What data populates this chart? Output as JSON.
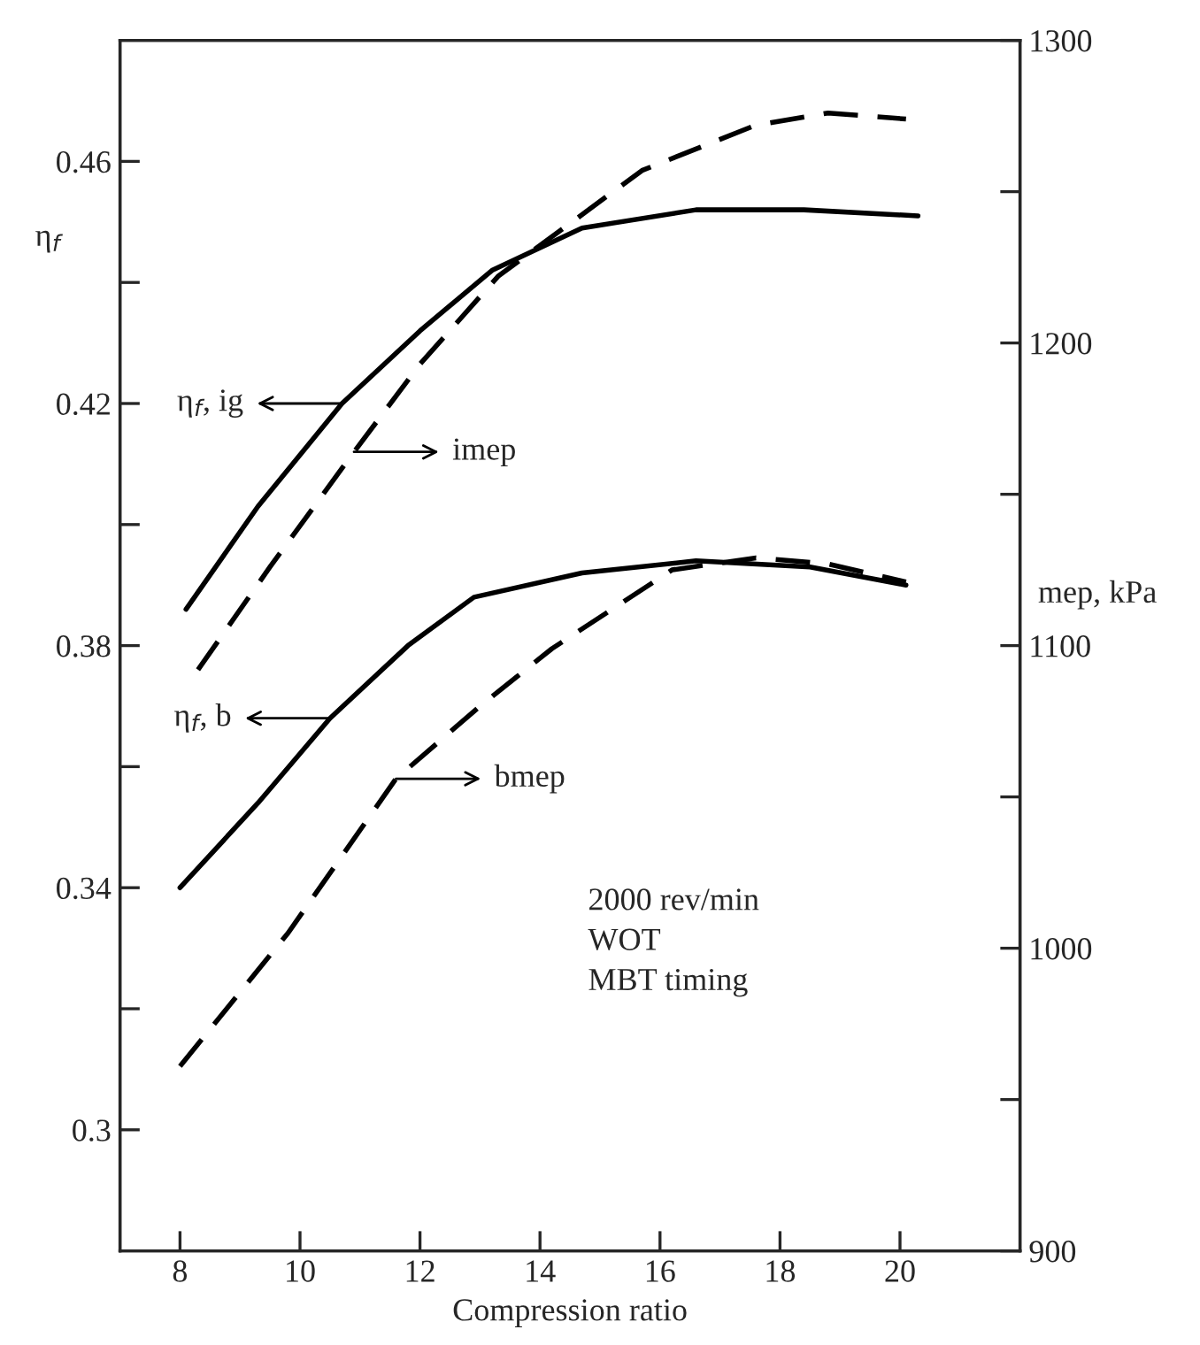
{
  "chart_data": {
    "type": "line",
    "xlabel": "Compression ratio",
    "ylabel": "η$_{f}$",
    "y2label": "mep, kPa",
    "xlim": [
      7,
      22
    ],
    "xticks": [
      8,
      10,
      12,
      14,
      16,
      18,
      20
    ],
    "ylim": [
      0.28,
      0.48
    ],
    "yticks": [
      0.3,
      {
        "value": 0.32,
        "label": null
      },
      0.34,
      {
        "value": 0.36,
        "label": null
      },
      0.38,
      {
        "value": 0.4,
        "label": null
      },
      0.42,
      {
        "value": 0.44,
        "label": null
      },
      0.46
    ],
    "y2lim": [
      900,
      1300
    ],
    "y2ticks": [
      900,
      {
        "value": 950,
        "label": null
      },
      1000,
      {
        "value": 1050,
        "label": null
      },
      1100,
      {
        "value": 1150,
        "label": null
      },
      1200,
      {
        "value": 1250,
        "label": null
      },
      1300
    ],
    "grid": false,
    "marker": "none",
    "series": [
      {
        "color": "#000000",
        "line_style": "solid",
        "x": [
          8.1,
          9.3,
          10.7,
          12.0,
          13.2,
          14.7,
          16.6,
          18.4,
          20.3
        ],
        "values": [
          0.386,
          0.403,
          0.42,
          0.432,
          0.442,
          0.449,
          0.452,
          0.452,
          0.451
        ]
      },
      {
        "color": "#000000",
        "line_style": "dashed",
        "axis": "y2",
        "x": [
          8.3,
          9.5,
          10.9,
          12.0,
          13.3,
          15.7,
          17.6,
          18.8,
          20.1
        ],
        "values": [
          1092,
          1126,
          1164,
          1193,
          1222,
          1257,
          1272,
          1276,
          1274
        ]
      },
      {
        "color": "#000000",
        "line_style": "solid",
        "x": [
          8.0,
          9.3,
          10.5,
          11.8,
          12.9,
          14.7,
          16.6,
          18.5,
          20.1
        ],
        "values": [
          0.34,
          0.354,
          0.368,
          0.38,
          0.388,
          0.392,
          0.394,
          0.393,
          0.39
        ]
      },
      {
        "color": "#000000",
        "line_style": "dashed",
        "axis": "y2",
        "x": [
          8.0,
          9.8,
          11.6,
          13.0,
          14.2,
          16.2,
          17.6,
          18.8,
          20.1
        ],
        "values": [
          961,
          1005,
          1056,
          1080,
          1099,
          1125,
          1129,
          1127,
          1121
        ]
      }
    ],
    "annotations": [
      "η$_{f}$, ig",
      "imep",
      "η$_{f}$, b",
      "bmep",
      "2000 rev/min\nWOT\nMBT timing"
    ]
  }
}
